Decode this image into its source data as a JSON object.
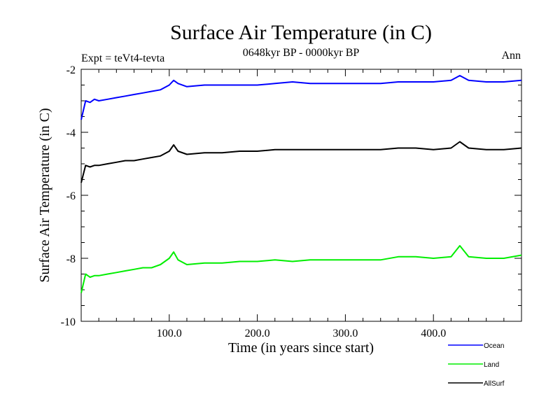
{
  "chart_data": {
    "type": "line",
    "title": "Surface Air Temperature (in C)",
    "subtitle": "0648kyr BP - 0000kyr BP",
    "left_label": "Expt = teVt4-tevta",
    "right_label": "Ann",
    "xlabel": "Time (in years since start)",
    "ylabel": "Surface Air Temperature (in C)",
    "xlim": [
      0,
      500
    ],
    "ylim": [
      -10,
      -2
    ],
    "x_ticks": [
      100,
      200,
      300,
      400
    ],
    "x_tick_labels": [
      "100.0",
      "200.0",
      "300.0",
      "400.0"
    ],
    "y_ticks": [
      -10,
      -8,
      -6,
      -4,
      -2
    ],
    "y_tick_labels": [
      "-10",
      "-8",
      "-6",
      "-4",
      "-2"
    ],
    "legend_position": "bottom-right, outside plot",
    "series": [
      {
        "name": "Ocean",
        "color": "#0000ff",
        "x": [
          0,
          5,
          10,
          15,
          20,
          30,
          40,
          50,
          60,
          70,
          80,
          90,
          100,
          105,
          110,
          120,
          140,
          160,
          180,
          200,
          220,
          240,
          260,
          280,
          300,
          320,
          340,
          360,
          380,
          400,
          420,
          430,
          440,
          460,
          480,
          500
        ],
        "values": [
          -3.6,
          -3.0,
          -3.05,
          -2.95,
          -3.0,
          -2.95,
          -2.9,
          -2.85,
          -2.8,
          -2.75,
          -2.7,
          -2.65,
          -2.5,
          -2.35,
          -2.45,
          -2.55,
          -2.5,
          -2.5,
          -2.5,
          -2.5,
          -2.45,
          -2.4,
          -2.45,
          -2.45,
          -2.45,
          -2.45,
          -2.45,
          -2.4,
          -2.4,
          -2.4,
          -2.35,
          -2.2,
          -2.35,
          -2.4,
          -2.4,
          -2.35
        ]
      },
      {
        "name": "Land",
        "color": "#00ee00",
        "x": [
          0,
          5,
          10,
          15,
          20,
          30,
          40,
          50,
          60,
          70,
          80,
          90,
          100,
          105,
          110,
          120,
          140,
          160,
          180,
          200,
          220,
          240,
          260,
          280,
          300,
          320,
          340,
          360,
          380,
          400,
          420,
          430,
          440,
          460,
          480,
          500
        ],
        "values": [
          -9.1,
          -8.5,
          -8.6,
          -8.55,
          -8.55,
          -8.5,
          -8.45,
          -8.4,
          -8.35,
          -8.3,
          -8.3,
          -8.2,
          -8.0,
          -7.8,
          -8.05,
          -8.2,
          -8.15,
          -8.15,
          -8.1,
          -8.1,
          -8.05,
          -8.1,
          -8.05,
          -8.05,
          -8.05,
          -8.05,
          -8.05,
          -7.95,
          -7.95,
          -8.0,
          -7.95,
          -7.6,
          -7.95,
          -8.0,
          -8.0,
          -7.9
        ]
      },
      {
        "name": "AllSurf",
        "color": "#000000",
        "x": [
          0,
          5,
          10,
          15,
          20,
          30,
          40,
          50,
          60,
          70,
          80,
          90,
          100,
          105,
          110,
          120,
          140,
          160,
          180,
          200,
          220,
          240,
          260,
          280,
          300,
          320,
          340,
          360,
          380,
          400,
          420,
          430,
          440,
          460,
          480,
          500
        ],
        "values": [
          -5.6,
          -5.05,
          -5.1,
          -5.05,
          -5.05,
          -5.0,
          -4.95,
          -4.9,
          -4.9,
          -4.85,
          -4.8,
          -4.75,
          -4.6,
          -4.4,
          -4.6,
          -4.7,
          -4.65,
          -4.65,
          -4.6,
          -4.6,
          -4.55,
          -4.55,
          -4.55,
          -4.55,
          -4.55,
          -4.55,
          -4.55,
          -4.5,
          -4.5,
          -4.55,
          -4.5,
          -4.3,
          -4.5,
          -4.55,
          -4.55,
          -4.5
        ]
      }
    ]
  }
}
